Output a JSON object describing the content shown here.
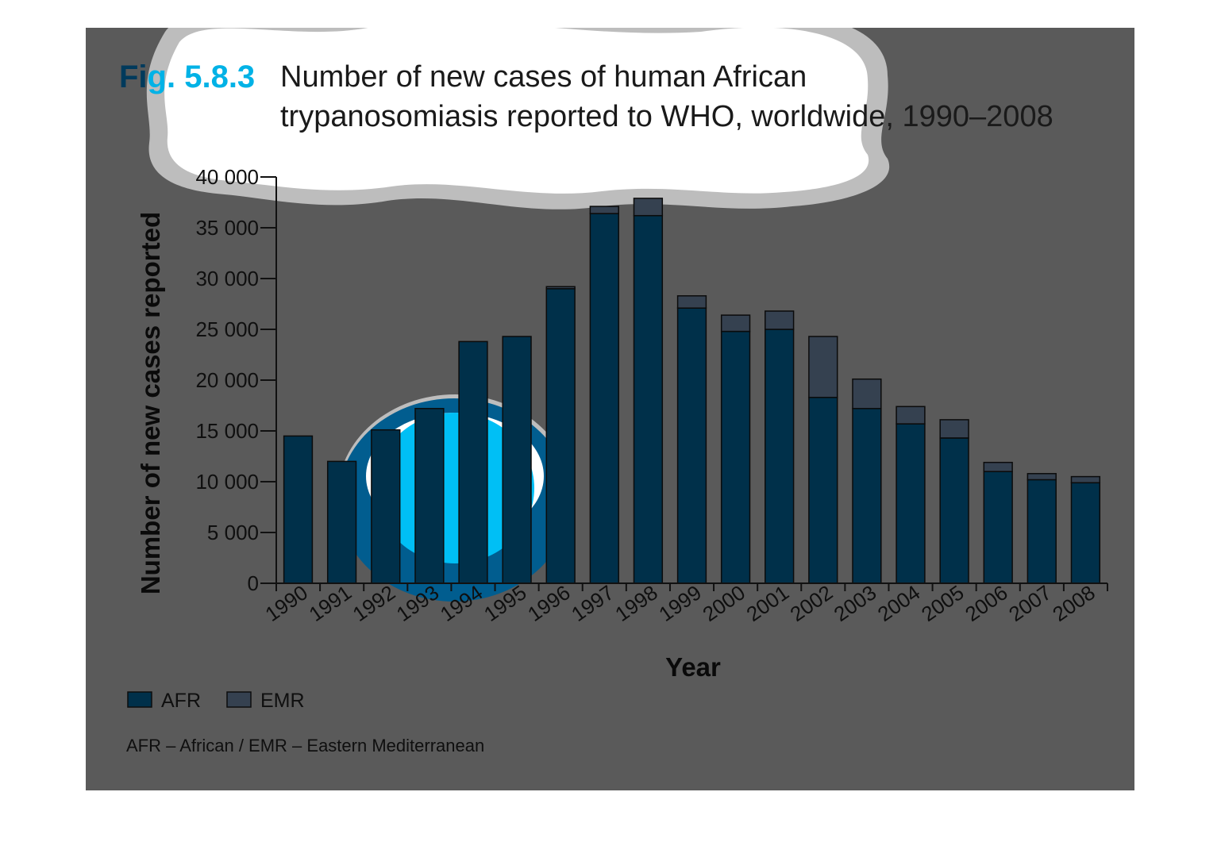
{
  "figure": {
    "number": "Fig. 5.8.3",
    "title_lines": [
      "Number of new cases of human African",
      "trypanosomiasis reported to WHO, worldwide, 1990–2008"
    ],
    "note": "AFR – African / EMR – Eastern Mediterranean"
  },
  "colors": {
    "panel": "#5a5a5a",
    "afr": "#00304a",
    "emr": "#354150",
    "fig_number_dark": "#003a5c",
    "fig_number_light": "#00b2e6",
    "callout_blue": "#00bff5",
    "callout_ring": "#015d8f",
    "cloud_fill": "#ffffff",
    "cloud_edge": "#bdbdbd"
  },
  "chart_data": {
    "type": "bar",
    "stacked": true,
    "categories": [
      "1990",
      "1991",
      "1992",
      "1993",
      "1994",
      "1995",
      "1996",
      "1997",
      "1998",
      "1999",
      "2000",
      "2001",
      "2002",
      "2003",
      "2004",
      "2005",
      "2006",
      "2007",
      "2008"
    ],
    "series": [
      {
        "name": "AFR",
        "values": [
          14500,
          12000,
          15100,
          17200,
          23800,
          24300,
          29000,
          36400,
          36200,
          27100,
          24800,
          25000,
          18300,
          17200,
          15700,
          14300,
          11000,
          10200,
          9900
        ]
      },
      {
        "name": "EMR",
        "values": [
          0,
          0,
          0,
          0,
          0,
          0,
          200,
          700,
          1700,
          1200,
          1600,
          1800,
          6000,
          2900,
          1700,
          1800,
          900,
          600,
          600
        ]
      }
    ],
    "xlabel": "Year",
    "ylabel": "Number of new cases reported",
    "ylim": [
      0,
      40000
    ],
    "yticks": [
      0,
      5000,
      10000,
      15000,
      20000,
      25000,
      30000,
      35000,
      40000
    ],
    "ytick_labels": [
      "0",
      "5 000",
      "10 000",
      "15 000",
      "20 000",
      "25 000",
      "30 000",
      "35 000",
      "40 000"
    ],
    "grid": false,
    "legend_position": "bottom-left"
  }
}
